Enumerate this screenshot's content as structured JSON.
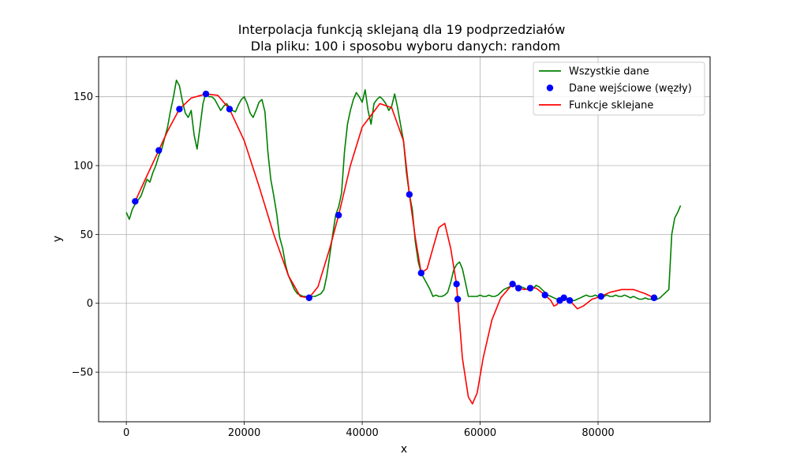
{
  "chart_data": {
    "type": "line",
    "title": "Interpolacja funkcją sklejaną dla 19 podprzedziałów",
    "subtitle": "Dla pliku: 100 i sposobu wyboru danych: random",
    "xlabel": "x",
    "ylabel": "y",
    "xlim": [
      -4700,
      99000
    ],
    "ylim": [
      -86,
      179
    ],
    "xticks": [
      0,
      20000,
      40000,
      60000,
      80000
    ],
    "xtick_labels": [
      "0",
      "20000",
      "40000",
      "60000",
      "80000"
    ],
    "yticks": [
      -50,
      0,
      50,
      100,
      150
    ],
    "ytick_labels": [
      "−50",
      "0",
      "50",
      "100",
      "150"
    ],
    "grid": true,
    "legend_position": "top-right",
    "series": [
      {
        "name": "Wszystkie dane",
        "kind": "line",
        "color": "#008000",
        "x": [
          0,
          500,
          1000,
          1500,
          2000,
          2500,
          3000,
          3500,
          4000,
          4500,
          5000,
          5500,
          6000,
          6500,
          7000,
          7500,
          8000,
          8500,
          9000,
          9500,
          10000,
          10500,
          11000,
          11500,
          12000,
          12500,
          13000,
          13500,
          14000,
          14500,
          15000,
          15500,
          16000,
          16500,
          17000,
          17500,
          18000,
          18500,
          19000,
          19500,
          20000,
          20500,
          21000,
          21500,
          22000,
          22500,
          23000,
          23500,
          24000,
          24500,
          25000,
          25500,
          26000,
          26500,
          27000,
          27500,
          28000,
          28500,
          29000,
          29500,
          30000,
          30500,
          31000,
          31500,
          32000,
          32500,
          33000,
          33500,
          34000,
          34500,
          35000,
          35500,
          36000,
          36500,
          37000,
          37500,
          38000,
          38500,
          39000,
          39500,
          40000,
          40500,
          41000,
          41500,
          42000,
          42500,
          43000,
          43500,
          44000,
          44500,
          45000,
          45500,
          46000,
          46500,
          47000,
          47500,
          48000,
          48500,
          49000,
          49500,
          50000,
          50500,
          51000,
          51500,
          52000,
          52500,
          53000,
          53500,
          54000,
          54500,
          55000,
          55500,
          56000,
          56500,
          57000,
          57500,
          58000,
          58500,
          59000,
          59500,
          60000,
          60500,
          61000,
          61500,
          62000,
          62500,
          63000,
          63500,
          64000,
          64500,
          65000,
          65500,
          66000,
          66500,
          67000,
          67500,
          68000,
          68500,
          69000,
          69500,
          70000,
          70500,
          71000,
          71500,
          72000,
          72500,
          73000,
          73500,
          74000,
          74500,
          75000,
          75500,
          76000,
          76500,
          77000,
          77500,
          78000,
          78500,
          79000,
          79500,
          80000,
          80500,
          81000,
          81500,
          82000,
          82500,
          83000,
          83500,
          84000,
          84500,
          85000,
          85500,
          86000,
          86500,
          87000,
          87500,
          88000,
          88500,
          89000,
          89500,
          90000,
          90500,
          91000,
          91500,
          92000,
          92500,
          93000,
          93500,
          94000
        ],
        "y": [
          66,
          61,
          68,
          72,
          75,
          78,
          84,
          90,
          88,
          95,
          100,
          107,
          112,
          120,
          128,
          140,
          150,
          162,
          158,
          147,
          138,
          135,
          140,
          122,
          112,
          128,
          145,
          153,
          150,
          150,
          148,
          144,
          140,
          143,
          145,
          142,
          140,
          139,
          144,
          148,
          150,
          145,
          138,
          135,
          140,
          146,
          148,
          139,
          110,
          90,
          78,
          65,
          48,
          40,
          28,
          20,
          15,
          10,
          7,
          6,
          5,
          5,
          4,
          5,
          5,
          6,
          7,
          10,
          20,
          35,
          50,
          64,
          70,
          80,
          110,
          130,
          140,
          148,
          153,
          150,
          146,
          155,
          140,
          130,
          145,
          148,
          150,
          148,
          145,
          140,
          143,
          152,
          142,
          130,
          118,
          95,
          79,
          68,
          45,
          30,
          22,
          18,
          14,
          10,
          5,
          6,
          5,
          5,
          6,
          8,
          15,
          24,
          28,
          30,
          25,
          15,
          5,
          5,
          5,
          5,
          6,
          5,
          5,
          6,
          5,
          5,
          6,
          8,
          10,
          11,
          12,
          14,
          13,
          11,
          12,
          11,
          10,
          12,
          11,
          13,
          12,
          10,
          8,
          6,
          5,
          4,
          3,
          4,
          3,
          4,
          3,
          2,
          2,
          3,
          4,
          5,
          6,
          5,
          5,
          6,
          5,
          4,
          5,
          6,
          5,
          5,
          6,
          5,
          5,
          6,
          5,
          4,
          5,
          4,
          3,
          3,
          4,
          3,
          3,
          2,
          3,
          4,
          6,
          8,
          10,
          50,
          62,
          66,
          71
        ]
      },
      {
        "name": "Dane wejściowe (węzły)",
        "kind": "scatter",
        "color": "#0000ff",
        "x": [
          1500,
          5500,
          9000,
          13500,
          17500,
          31000,
          36000,
          48000,
          50000,
          56000,
          56200,
          65500,
          66500,
          68500,
          71000,
          73500,
          74200,
          75200,
          80500,
          89500
        ],
        "y": [
          74,
          111,
          141,
          152,
          141,
          4,
          64,
          79,
          22,
          14,
          3,
          14,
          11,
          11,
          6,
          2,
          4,
          2,
          5,
          4
        ]
      },
      {
        "name": "Funkcje sklejane",
        "kind": "line",
        "color": "#ff0000",
        "x": [
          1500,
          3000,
          5500,
          7000,
          9000,
          11000,
          13500,
          15500,
          17500,
          20000,
          22500,
          25000,
          27500,
          29500,
          31000,
          32500,
          34500,
          36000,
          38000,
          40000,
          43000,
          45000,
          47000,
          48000,
          49000,
          50000,
          51000,
          52000,
          53000,
          54000,
          55000,
          56000,
          56200,
          57000,
          58000,
          58700,
          59500,
          60500,
          62000,
          63500,
          65500,
          66500,
          67500,
          68500,
          69500,
          71000,
          72000,
          72500,
          73000,
          73500,
          74200,
          75200,
          76500,
          77500,
          79000,
          80500,
          82000,
          84000,
          86000,
          88000,
          89500
        ],
        "y": [
          74,
          88,
          111,
          125,
          141,
          149,
          152,
          151,
          141,
          118,
          85,
          50,
          20,
          5,
          4,
          12,
          40,
          64,
          100,
          128,
          145,
          142,
          118,
          79,
          48,
          22,
          25,
          40,
          55,
          58,
          40,
          14,
          3,
          -40,
          -68,
          -73,
          -65,
          -40,
          -12,
          4,
          14,
          11,
          10,
          11,
          11,
          6,
          2,
          -2,
          -1,
          2,
          4,
          2,
          -4,
          -2,
          3,
          5,
          8,
          10,
          10,
          7,
          4
        ]
      }
    ]
  }
}
